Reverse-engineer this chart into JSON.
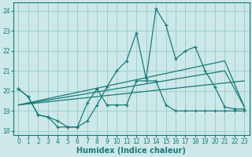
{
  "xlabel": "Humidex (Indice chaleur)",
  "xlim": [
    -0.5,
    23.5
  ],
  "ylim": [
    17.8,
    24.4
  ],
  "yticks": [
    18,
    19,
    20,
    21,
    22,
    23,
    24
  ],
  "xticks": [
    0,
    1,
    2,
    3,
    4,
    5,
    6,
    7,
    8,
    9,
    10,
    11,
    12,
    13,
    14,
    15,
    16,
    17,
    18,
    19,
    20,
    21,
    22,
    23
  ],
  "bg_color": "#cce8e8",
  "grid_color": "#99cccc",
  "line_color": "#1a7a7a",
  "series1_x": [
    0,
    1,
    2,
    3,
    4,
    5,
    6,
    7,
    8,
    9,
    10,
    11,
    12,
    13,
    14,
    15,
    16,
    17,
    18,
    19,
    20,
    21,
    22,
    23
  ],
  "series1_y": [
    20.1,
    19.7,
    18.8,
    18.7,
    18.5,
    18.2,
    18.2,
    18.5,
    19.3,
    20.2,
    21.0,
    21.5,
    22.9,
    20.6,
    24.1,
    23.3,
    21.6,
    22.0,
    22.2,
    21.0,
    20.2,
    19.2,
    19.1,
    19.1
  ],
  "series2_x": [
    0,
    1,
    2,
    3,
    4,
    5,
    6,
    7,
    8,
    9,
    10,
    11,
    12,
    13,
    14,
    15,
    16,
    17,
    18,
    19,
    20,
    21,
    22,
    23
  ],
  "series2_y": [
    20.1,
    19.7,
    18.8,
    18.7,
    18.2,
    18.2,
    18.2,
    19.4,
    20.1,
    19.3,
    19.3,
    19.3,
    20.5,
    20.5,
    20.5,
    19.3,
    19.0,
    19.0,
    19.0,
    19.0,
    19.0,
    19.0,
    19.0,
    19.0
  ],
  "trendline1_x": [
    0,
    23
  ],
  "trendline1_y": [
    19.3,
    20.5
  ],
  "trendline2_x": [
    0,
    21,
    23
  ],
  "trendline2_y": [
    19.3,
    21.5,
    19.2
  ],
  "trendline3_x": [
    0,
    21,
    23
  ],
  "trendline3_y": [
    19.3,
    21.0,
    19.2
  ]
}
